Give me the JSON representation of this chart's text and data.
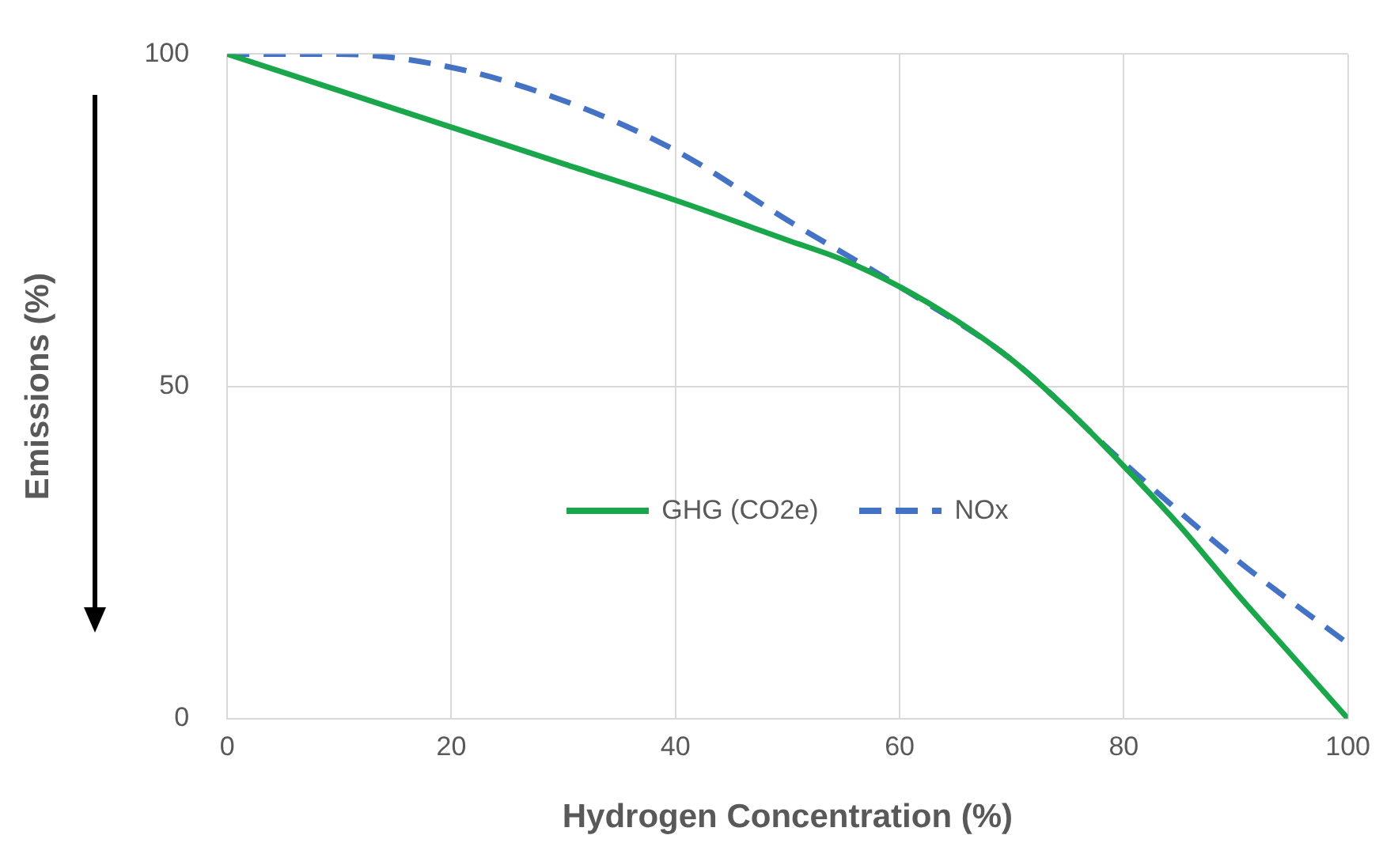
{
  "chart_data": {
    "type": "line",
    "xlabel": "Hydrogen Concentration (%)",
    "ylabel": "Emissions (%)",
    "xlim": [
      0,
      100
    ],
    "xticks": [
      0,
      20,
      40,
      60,
      80,
      100
    ],
    "ylim": [
      0,
      100
    ],
    "yticks": [
      0,
      50,
      100
    ],
    "grid": true,
    "legend": "center",
    "marker": "none",
    "series": [
      {
        "name": "GHG (CO2e)",
        "color": "#1aa64a",
        "line_style": "solid",
        "x": [
          0,
          10,
          20,
          30,
          40,
          50,
          55,
          60,
          65,
          70,
          75,
          80,
          85,
          90,
          95,
          100
        ],
        "values": [
          100,
          94.5,
          89,
          83.5,
          78,
          72,
          69,
          65,
          60,
          54,
          46.5,
          38,
          29,
          19,
          9.5,
          0
        ]
      },
      {
        "name": "NOx",
        "color": "#4472c4",
        "line_style": "dashed",
        "x": [
          0,
          10,
          20,
          30,
          40,
          50,
          60,
          70,
          80,
          90,
          100
        ],
        "values": [
          100,
          100,
          98,
          93,
          85.5,
          75,
          65,
          54,
          38.5,
          24,
          11.3
        ]
      }
    ]
  }
}
